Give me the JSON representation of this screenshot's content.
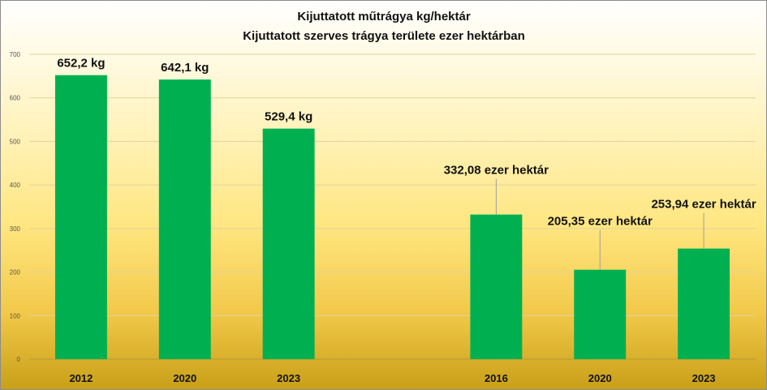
{
  "chart_data": {
    "type": "bar",
    "title": "Kijuttatott műtrágya kg/hektár",
    "subtitle": "Kijuttatott szerves trágya területe ezer hektárban",
    "xlabel": "",
    "ylabel": "",
    "ylim": [
      0,
      700
    ],
    "yticks": [
      0,
      100,
      200,
      300,
      400,
      500,
      600,
      700
    ],
    "grid": true,
    "bar_color": "#00b050",
    "categories": [
      "2012",
      "2020",
      "2023",
      "",
      "2016",
      "2020",
      "2023"
    ],
    "values": [
      652.2,
      642.1,
      529.4,
      null,
      332.08,
      205.35,
      253.94
    ],
    "data_labels": [
      "652,2 kg",
      "642,1 kg",
      "529,4 kg",
      "",
      "332,08 ezer hektár",
      "205,35 ezer hektár",
      "253,94 ezer hektár"
    ]
  }
}
